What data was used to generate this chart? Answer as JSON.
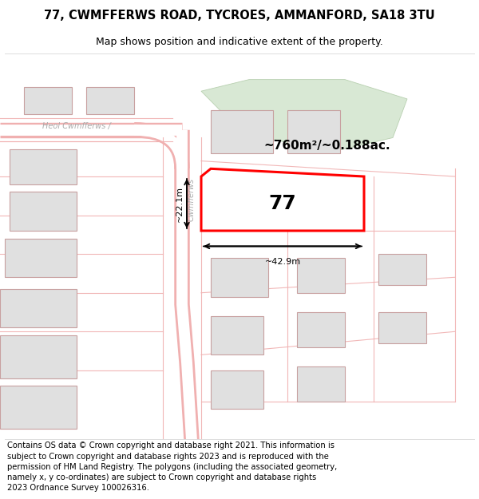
{
  "title_line1": "77, CWMFFERWS ROAD, TYCROES, AMMANFORD, SA18 3TU",
  "title_line2": "Map shows position and indicative extent of the property.",
  "footer_text": "Contains OS data © Crown copyright and database right 2021. This information is subject to Crown copyright and database rights 2023 and is reproduced with the permission of HM Land Registry. The polygons (including the associated geometry, namely x, y co-ordinates) are subject to Crown copyright and database rights 2023 Ordnance Survey 100026316.",
  "bg_color": "#ffffff",
  "map_bg": "#ffffff",
  "green_area_color": "#d8e8d4",
  "road_fill": "#ffffff",
  "road_edge": "#f0b0b0",
  "building_color": "#e0e0e0",
  "building_border": "#c8a0a0",
  "highlight_color": "#ff0000",
  "area_label": "~760m²/~0.188ac.",
  "property_label": "77",
  "width_label": "~42.9m",
  "height_label": "~22.1m",
  "street_label1": "Heol Cwmfferws /",
  "street_label2": "Cwmfferws",
  "title_fontsize": 10.5,
  "subtitle_fontsize": 9,
  "footer_fontsize": 7.2
}
